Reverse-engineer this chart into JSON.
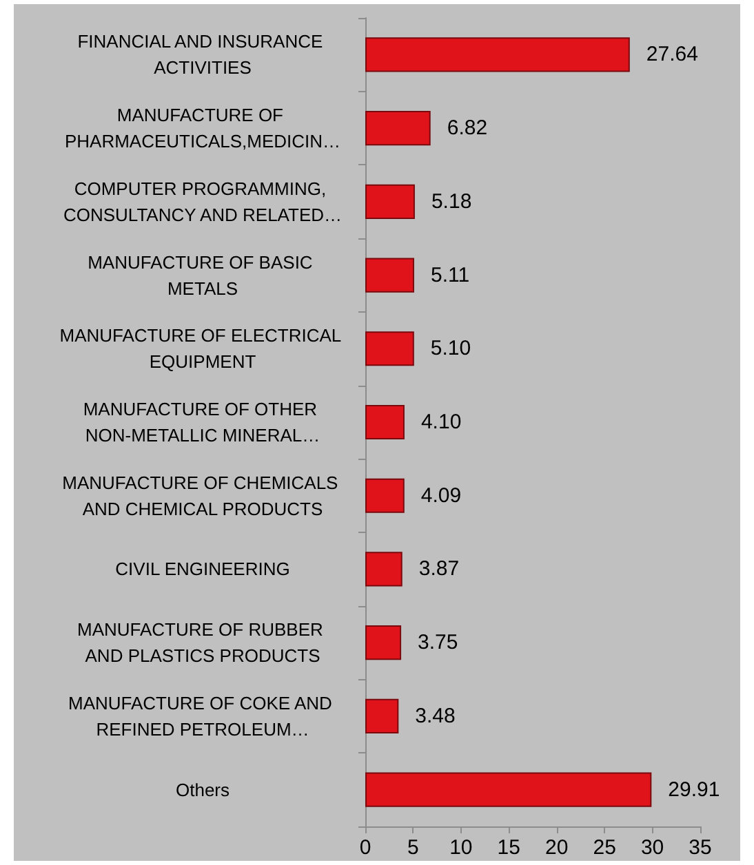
{
  "chart_data": {
    "type": "bar",
    "orientation": "horizontal",
    "categories": [
      "FINANCIAL AND INSURANCE ACTIVITIES",
      "MANUFACTURE OF PHARMACEUTICALS,MEDICIN…",
      "COMPUTER PROGRAMMING, CONSULTANCY AND RELATED…",
      "MANUFACTURE OF BASIC METALS",
      "MANUFACTURE OF ELECTRICAL EQUIPMENT",
      "MANUFACTURE OF OTHER NON-METALLIC MINERAL…",
      "MANUFACTURE OF CHEMICALS AND CHEMICAL PRODUCTS",
      "CIVIL ENGINEERING",
      "MANUFACTURE OF RUBBER AND PLASTICS PRODUCTS",
      "MANUFACTURE OF COKE AND REFINED PETROLEUM…",
      "Others"
    ],
    "values": [
      27.64,
      6.82,
      5.18,
      5.11,
      5.1,
      4.1,
      4.09,
      3.87,
      3.75,
      3.48,
      29.91
    ],
    "value_labels": [
      "27.64",
      "6.82",
      "5.18",
      "5.11",
      "5.10",
      "4.10",
      "4.09",
      "3.87",
      "3.75",
      "3.48",
      "29.91"
    ],
    "color": "#e0131b",
    "xlim": [
      0,
      35
    ],
    "xticks": [
      0,
      5,
      10,
      15,
      20,
      25,
      30,
      35
    ]
  }
}
